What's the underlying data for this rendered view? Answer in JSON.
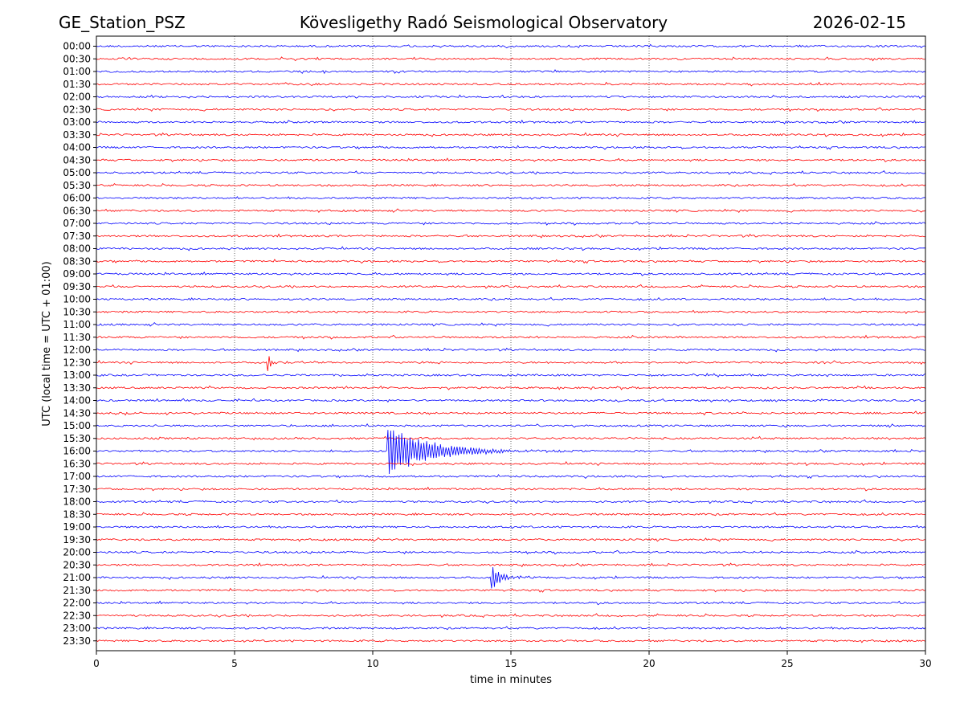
{
  "header": {
    "station": "GE_Station_PSZ",
    "title": "Kövesligethy Radó Seismological Observatory",
    "date": "2026-02-15"
  },
  "chart_data": {
    "type": "line",
    "title": "Kövesligethy Radó Seismological Observatory",
    "xlabel": "time in minutes",
    "ylabel": "UTC (local time = UTC + 01:00)",
    "xlim": [
      0,
      30
    ],
    "x_ticks": [
      0,
      5,
      10,
      15,
      20,
      25,
      30
    ],
    "grid": "vertical dotted lines at 5-minute ticks",
    "row_labels": [
      "00:00",
      "00:30",
      "01:00",
      "01:30",
      "02:00",
      "02:30",
      "03:00",
      "03:30",
      "04:00",
      "04:30",
      "05:00",
      "05:30",
      "06:00",
      "06:30",
      "07:00",
      "07:30",
      "08:00",
      "08:30",
      "09:00",
      "09:30",
      "10:00",
      "10:30",
      "11:00",
      "11:30",
      "12:00",
      "12:30",
      "13:00",
      "13:30",
      "14:00",
      "14:30",
      "15:00",
      "15:30",
      "16:00",
      "16:30",
      "17:00",
      "17:30",
      "18:00",
      "18:30",
      "19:00",
      "19:30",
      "20:00",
      "20:30",
      "21:00",
      "21:30",
      "22:00",
      "22:30",
      "23:00",
      "23:30"
    ],
    "trace_colors": [
      "#0000ff",
      "#ff0000"
    ],
    "events": [
      {
        "row": "12:30",
        "start_min": 6.2,
        "duration_min": 0.6,
        "peak_amplitude": 0.4,
        "color": "#ff0000"
      },
      {
        "row": "16:00",
        "start_min": 10.55,
        "duration_min": 8.0,
        "peak_amplitude": 1.0,
        "color": "#0000ff"
      },
      {
        "row": "21:00",
        "start_min": 14.3,
        "duration_min": 1.8,
        "peak_amplitude": 0.5,
        "color": "#0000ff"
      }
    ]
  }
}
